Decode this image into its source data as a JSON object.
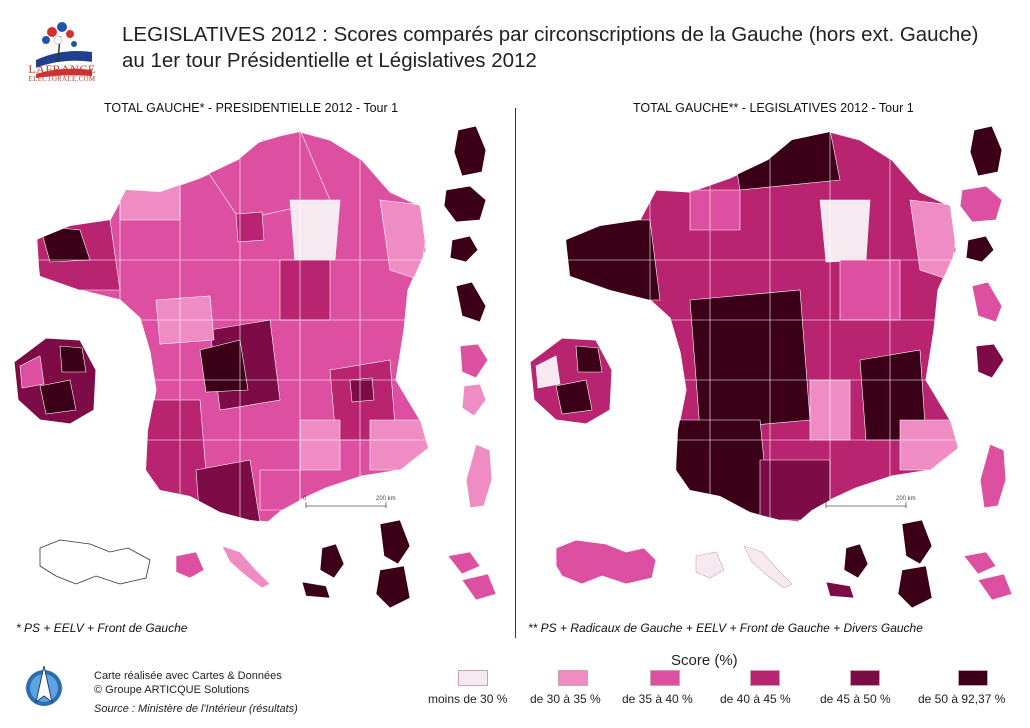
{
  "header": {
    "title_line1": "LEGISLATIVES 2012 : Scores comparés par circonscriptions de la Gauche (hors ext. Gauche)",
    "title_line2": "au 1er tour Présidentielle et Législatives 2012",
    "logo_text": "LAFRANCE",
    "logo_subtext": "ELECTORALE.COM"
  },
  "panels": {
    "left": {
      "title": "TOTAL GAUCHE* - PRESIDENTIELLE 2012 - Tour 1",
      "note": "* PS + EELV + Front de Gauche",
      "scale_start": "0",
      "scale_end": "200 km"
    },
    "right": {
      "title": "TOTAL GAUCHE** - LEGISLATIVES 2012 - Tour 1",
      "note": "** PS + Radicaux de Gauche + EELV + Front de Gauche + Divers Gauche",
      "scale_start": "0",
      "scale_end": "200 km"
    }
  },
  "legend": {
    "title": "Score (%)",
    "items": [
      {
        "label": "moins de 30 %",
        "color": "#f6e9f0"
      },
      {
        "label": "de 30 à 35 %",
        "color": "#f08cc4"
      },
      {
        "label": "de 35 à 40 %",
        "color": "#dd4fa0"
      },
      {
        "label": "de 40 à 45 %",
        "color": "#b8246f"
      },
      {
        "label": "de 45 à 50 %",
        "color": "#7d0b45"
      },
      {
        "label": "de 50 à 92,37 %",
        "color": "#3b0017"
      }
    ]
  },
  "footer": {
    "credit_line1": "Carte réalisée avec Cartes & Données",
    "credit_line2": "© Groupe ARTICQUE Solutions",
    "source": "Source : Ministère de l'Intérieur (résultats)"
  }
}
